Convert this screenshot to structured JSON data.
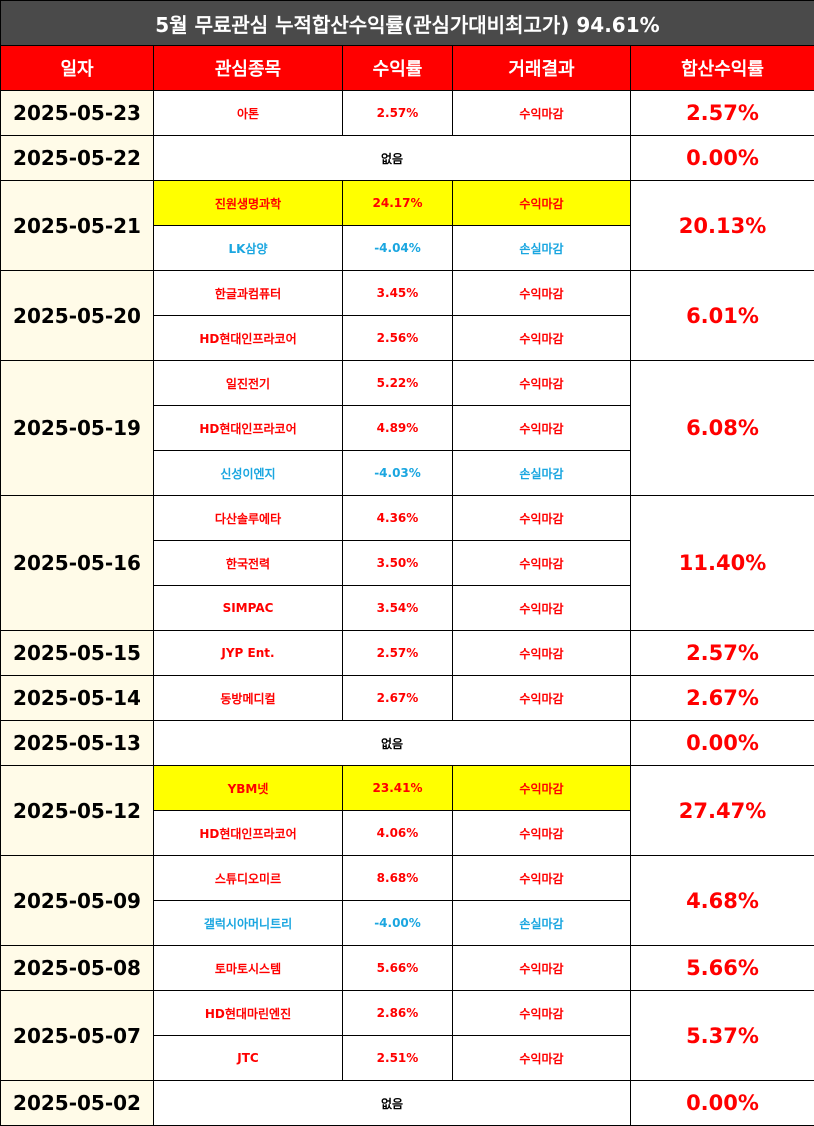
{
  "title": "5월 무료관심 누적합산수익률(관심가대비최고가) 94.61%",
  "headers": [
    "일자",
    "관심종목",
    "수익률",
    "거래결과",
    "합산수익률"
  ],
  "colors": {
    "profit": "#ff0000",
    "loss": "#1aa6e0",
    "highlight": "#ffff00",
    "header": "#ff0000",
    "title_bg": "#4a4a4a"
  },
  "groups": [
    {
      "date": "2025-05-23",
      "total": "2.57%",
      "rows": [
        {
          "stock": "아톤",
          "return": "2.57%",
          "result": "수익마감",
          "type": "profit"
        }
      ]
    },
    {
      "date": "2025-05-22",
      "total": "0.00%",
      "none": "없음",
      "rows": []
    },
    {
      "date": "2025-05-21",
      "total": "20.13%",
      "rows": [
        {
          "stock": "진원생명과학",
          "return": "24.17%",
          "result": "수익마감",
          "type": "profit",
          "highlight": true
        },
        {
          "stock": "LK삼양",
          "return": "-4.04%",
          "result": "손실마감",
          "type": "loss"
        }
      ]
    },
    {
      "date": "2025-05-20",
      "total": "6.01%",
      "rows": [
        {
          "stock": "한글과컴퓨터",
          "return": "3.45%",
          "result": "수익마감",
          "type": "profit"
        },
        {
          "stock": "HD현대인프라코어",
          "return": "2.56%",
          "result": "수익마감",
          "type": "profit"
        }
      ]
    },
    {
      "date": "2025-05-19",
      "total": "6.08%",
      "rows": [
        {
          "stock": "일진전기",
          "return": "5.22%",
          "result": "수익마감",
          "type": "profit"
        },
        {
          "stock": "HD현대인프라코어",
          "return": "4.89%",
          "result": "수익마감",
          "type": "profit"
        },
        {
          "stock": "신성이엔지",
          "return": "-4.03%",
          "result": "손실마감",
          "type": "loss"
        }
      ]
    },
    {
      "date": "2025-05-16",
      "total": "11.40%",
      "rows": [
        {
          "stock": "다산솔루에타",
          "return": "4.36%",
          "result": "수익마감",
          "type": "profit"
        },
        {
          "stock": "한국전력",
          "return": "3.50%",
          "result": "수익마감",
          "type": "profit"
        },
        {
          "stock": "SIMPAC",
          "return": "3.54%",
          "result": "수익마감",
          "type": "profit"
        }
      ]
    },
    {
      "date": "2025-05-15",
      "total": "2.57%",
      "rows": [
        {
          "stock": "JYP Ent.",
          "return": "2.57%",
          "result": "수익마감",
          "type": "profit"
        }
      ]
    },
    {
      "date": "2025-05-14",
      "total": "2.67%",
      "rows": [
        {
          "stock": "동방메디컬",
          "return": "2.67%",
          "result": "수익마감",
          "type": "profit"
        }
      ]
    },
    {
      "date": "2025-05-13",
      "total": "0.00%",
      "none": "없음",
      "rows": []
    },
    {
      "date": "2025-05-12",
      "total": "27.47%",
      "rows": [
        {
          "stock": "YBM넷",
          "return": "23.41%",
          "result": "수익마감",
          "type": "profit",
          "highlight": true
        },
        {
          "stock": "HD현대인프라코어",
          "return": "4.06%",
          "result": "수익마감",
          "type": "profit"
        }
      ]
    },
    {
      "date": "2025-05-09",
      "total": "4.68%",
      "rows": [
        {
          "stock": "스튜디오미르",
          "return": "8.68%",
          "result": "수익마감",
          "type": "profit"
        },
        {
          "stock": "갤럭시아머니트리",
          "return": "-4.00%",
          "result": "손실마감",
          "type": "loss"
        }
      ]
    },
    {
      "date": "2025-05-08",
      "total": "5.66%",
      "rows": [
        {
          "stock": "토마토시스템",
          "return": "5.66%",
          "result": "수익마감",
          "type": "profit"
        }
      ]
    },
    {
      "date": "2025-05-07",
      "total": "5.37%",
      "rows": [
        {
          "stock": "HD현대마린엔진",
          "return": "2.86%",
          "result": "수익마감",
          "type": "profit"
        },
        {
          "stock": "JTC",
          "return": "2.51%",
          "result": "수익마감",
          "type": "profit"
        }
      ]
    },
    {
      "date": "2025-05-02",
      "total": "0.00%",
      "none": "없음",
      "rows": []
    }
  ]
}
